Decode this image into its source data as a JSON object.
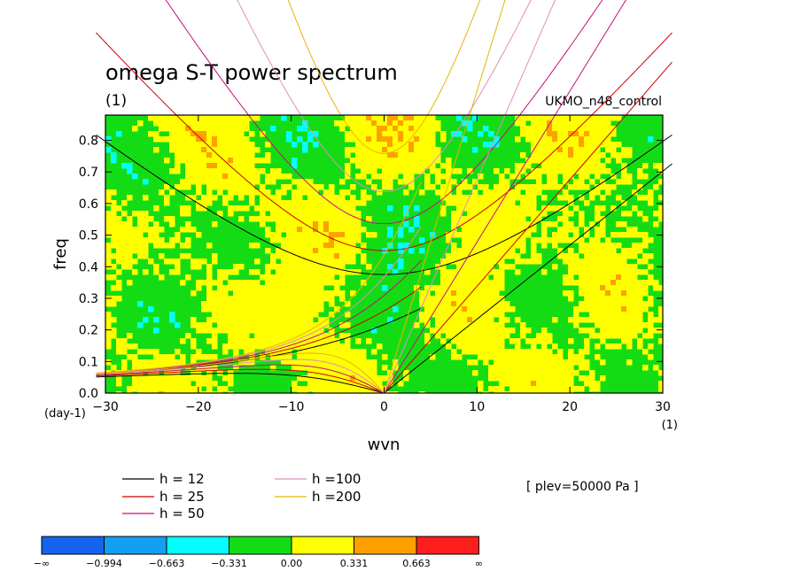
{
  "chart_data": {
    "type": "heatmap",
    "title": "omega S-T power spectrum",
    "subtitle": "(1)",
    "run_label": "UKMO_n48_control",
    "xlabel": "wvn",
    "ylabel": "freq",
    "x_unit": "(1)",
    "y_unit": "(day-1)",
    "xlim": [
      -30,
      30
    ],
    "ylim": [
      0,
      0.88
    ],
    "x_ticks": [
      -30,
      -20,
      -10,
      0,
      10,
      20,
      30
    ],
    "x_tick_labels": [
      "−30",
      "−20",
      "−10",
      "0",
      "10",
      "20",
      "30"
    ],
    "y_ticks": [
      0,
      0.1,
      0.2,
      0.3,
      0.4,
      0.5,
      0.6,
      0.7,
      0.8
    ],
    "y_tick_labels": [
      "0.0",
      "0.1",
      "0.2",
      "0.3",
      "0.4",
      "0.5",
      "0.6",
      "0.7",
      "0.8"
    ],
    "plev_note": "[ plev=50000 Pa ]",
    "dispersion_curves": [
      {
        "label": "h = 12",
        "h": 12,
        "color": "#000000"
      },
      {
        "label": "h = 25",
        "h": 25,
        "color": "#cc0000"
      },
      {
        "label": "h = 50",
        "h": 50,
        "color": "#c0107a"
      },
      {
        "label": "h =100",
        "h": 100,
        "color": "#e08cc0"
      },
      {
        "label": "h =200",
        "h": 200,
        "color": "#e8b400"
      }
    ],
    "colorbar": {
      "colors": [
        "#1464f0",
        "#14a0f0",
        "#00ffff",
        "#14dc14",
        "#ffff00",
        "#ffa000",
        "#ff1e1e"
      ],
      "labels": [
        "−∞",
        "−0.994",
        "−0.663",
        "−0.331",
        "0.00",
        "0.331",
        "0.663",
        "∞"
      ]
    }
  }
}
